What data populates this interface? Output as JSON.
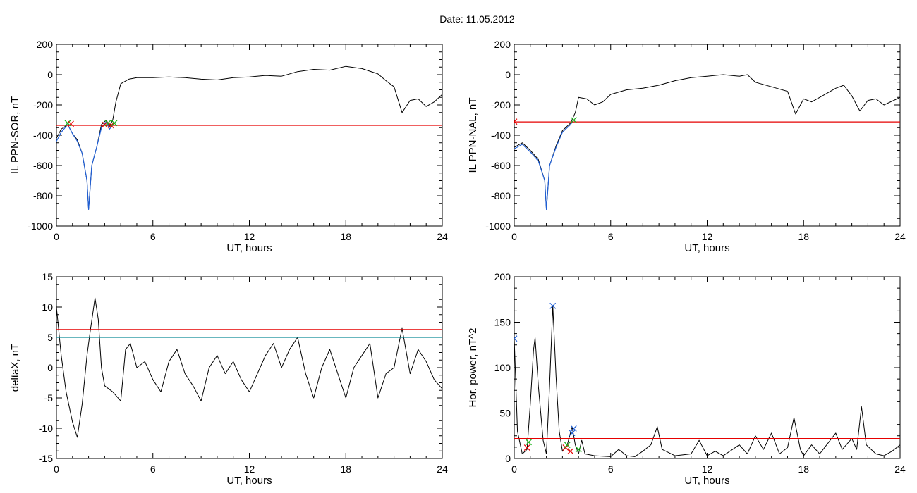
{
  "header": {
    "title": "Date:  11.05.2012"
  },
  "colors": {
    "black": "#000000",
    "red": "#e60000",
    "blue": "#1f5fd6",
    "teal": "#0f8c96",
    "green": "#19b419"
  },
  "chart_data": [
    {
      "type": "line",
      "xlabel": "UT, hours",
      "ylabel": "IL PPN-SOR, nT",
      "xlim": [
        0,
        24
      ],
      "ylim": [
        -1000,
        200
      ],
      "xticks": [
        0,
        6,
        12,
        18,
        24
      ],
      "yticks": [
        -1000,
        -800,
        -600,
        -400,
        -200,
        0,
        200
      ],
      "series": [
        {
          "color": "black",
          "points": [
            [
              0,
              -420
            ],
            [
              0.3,
              -360
            ],
            [
              0.7,
              -330
            ],
            [
              1.0,
              -390
            ],
            [
              1.3,
              -430
            ],
            [
              1.6,
              -520
            ],
            [
              1.9,
              -700
            ],
            [
              2.0,
              -890
            ],
            [
              2.2,
              -600
            ],
            [
              2.5,
              -480
            ],
            [
              2.8,
              -330
            ],
            [
              3.1,
              -300
            ],
            [
              3.3,
              -340
            ],
            [
              3.5,
              -300
            ],
            [
              3.7,
              -180
            ],
            [
              4.0,
              -60
            ],
            [
              4.5,
              -30
            ],
            [
              5.0,
              -20
            ],
            [
              6.0,
              -20
            ],
            [
              7.0,
              -15
            ],
            [
              8.0,
              -20
            ],
            [
              9.0,
              -30
            ],
            [
              10.0,
              -35
            ],
            [
              11.0,
              -20
            ],
            [
              12.0,
              -15
            ],
            [
              13.0,
              -5
            ],
            [
              14.0,
              -10
            ],
            [
              15.0,
              20
            ],
            [
              16.0,
              35
            ],
            [
              17.0,
              30
            ],
            [
              18.0,
              55
            ],
            [
              19.0,
              40
            ],
            [
              20.0,
              5
            ],
            [
              20.5,
              -40
            ],
            [
              21.0,
              -80
            ],
            [
              21.5,
              -250
            ],
            [
              22.0,
              -170
            ],
            [
              22.5,
              -160
            ],
            [
              23.0,
              -210
            ],
            [
              23.5,
              -180
            ],
            [
              24.0,
              -130
            ]
          ]
        },
        {
          "color": "blue",
          "points": [
            [
              0,
              -440
            ],
            [
              0.3,
              -380
            ],
            [
              0.7,
              -330
            ],
            [
              1.0,
              -390
            ],
            [
              1.3,
              -440
            ],
            [
              1.6,
              -520
            ],
            [
              1.9,
              -700
            ],
            [
              2.0,
              -890
            ],
            [
              2.2,
              -600
            ],
            [
              2.5,
              -480
            ],
            [
              2.8,
              -350
            ],
            [
              3.1,
              -310
            ],
            [
              3.3,
              -360
            ],
            [
              3.6,
              -320
            ]
          ]
        },
        {
          "color": "red",
          "points": [
            [
              0,
              -335
            ],
            [
              24,
              -335
            ]
          ]
        }
      ],
      "markers": [
        {
          "color": "green",
          "x": 0.7,
          "y": -320
        },
        {
          "color": "red",
          "x": 0.9,
          "y": -325
        },
        {
          "color": "red",
          "x": 3.0,
          "y": -330
        },
        {
          "color": "green",
          "x": 3.2,
          "y": -320
        },
        {
          "color": "red",
          "x": 3.4,
          "y": -335
        },
        {
          "color": "green",
          "x": 3.6,
          "y": -320
        }
      ]
    },
    {
      "type": "line",
      "xlabel": "UT, hours",
      "ylabel": "IL PPN-NAL, nT",
      "xlim": [
        0,
        24
      ],
      "ylim": [
        -1000,
        200
      ],
      "xticks": [
        0,
        6,
        12,
        18,
        24
      ],
      "yticks": [
        -1000,
        -800,
        -600,
        -400,
        -200,
        0,
        200
      ],
      "series": [
        {
          "color": "black",
          "points": [
            [
              0,
              -480
            ],
            [
              0.5,
              -450
            ],
            [
              1.0,
              -500
            ],
            [
              1.5,
              -560
            ],
            [
              1.9,
              -700
            ],
            [
              2.0,
              -890
            ],
            [
              2.2,
              -600
            ],
            [
              2.6,
              -470
            ],
            [
              3.0,
              -370
            ],
            [
              3.5,
              -320
            ],
            [
              3.8,
              -250
            ],
            [
              4.0,
              -150
            ],
            [
              4.5,
              -160
            ],
            [
              5.0,
              -200
            ],
            [
              5.5,
              -180
            ],
            [
              6.0,
              -130
            ],
            [
              7.0,
              -100
            ],
            [
              8.0,
              -90
            ],
            [
              9.0,
              -70
            ],
            [
              10.0,
              -40
            ],
            [
              11.0,
              -20
            ],
            [
              12.0,
              -10
            ],
            [
              13.0,
              0
            ],
            [
              14.0,
              -10
            ],
            [
              14.5,
              0
            ],
            [
              15.0,
              -50
            ],
            [
              16.0,
              -80
            ],
            [
              17.0,
              -110
            ],
            [
              17.5,
              -260
            ],
            [
              18.0,
              -160
            ],
            [
              18.5,
              -180
            ],
            [
              19.0,
              -150
            ],
            [
              20.0,
              -90
            ],
            [
              20.5,
              -70
            ],
            [
              21.0,
              -140
            ],
            [
              21.5,
              -240
            ],
            [
              22.0,
              -170
            ],
            [
              22.5,
              -160
            ],
            [
              23.0,
              -200
            ],
            [
              24.0,
              -150
            ]
          ]
        },
        {
          "color": "blue",
          "points": [
            [
              0,
              -490
            ],
            [
              0.5,
              -460
            ],
            [
              1.0,
              -510
            ],
            [
              1.5,
              -570
            ],
            [
              1.9,
              -700
            ],
            [
              2.0,
              -890
            ],
            [
              2.2,
              -600
            ],
            [
              2.6,
              -480
            ],
            [
              3.0,
              -380
            ],
            [
              3.5,
              -330
            ],
            [
              3.7,
              -300
            ]
          ]
        },
        {
          "color": "red",
          "points": [
            [
              0,
              -312
            ],
            [
              24,
              -312
            ]
          ]
        }
      ],
      "markers": [
        {
          "color": "red",
          "x": 0.0,
          "y": -310
        },
        {
          "color": "green",
          "x": 3.7,
          "y": -300
        }
      ]
    },
    {
      "type": "line",
      "xlabel": "UT, hours",
      "ylabel": "deltaX, nT",
      "xlim": [
        0,
        24
      ],
      "ylim": [
        -15,
        15
      ],
      "xticks": [
        0,
        6,
        12,
        18,
        24
      ],
      "yticks": [
        -15,
        -10,
        -5,
        0,
        5,
        10,
        15
      ],
      "series": [
        {
          "color": "black",
          "points": [
            [
              0,
              10
            ],
            [
              0.3,
              2
            ],
            [
              0.6,
              -4
            ],
            [
              1.0,
              -9
            ],
            [
              1.3,
              -11.5
            ],
            [
              1.6,
              -6
            ],
            [
              1.9,
              2
            ],
            [
              2.1,
              6
            ],
            [
              2.4,
              11.5
            ],
            [
              2.6,
              8
            ],
            [
              2.8,
              0
            ],
            [
              3.0,
              -3
            ],
            [
              3.5,
              -4
            ],
            [
              4.0,
              -5.5
            ],
            [
              4.3,
              3
            ],
            [
              4.6,
              4
            ],
            [
              5.0,
              0
            ],
            [
              5.5,
              1
            ],
            [
              6.0,
              -2
            ],
            [
              6.5,
              -4
            ],
            [
              7.0,
              1
            ],
            [
              7.5,
              3
            ],
            [
              8.0,
              -1
            ],
            [
              8.5,
              -3
            ],
            [
              9.0,
              -5.5
            ],
            [
              9.5,
              0
            ],
            [
              10.0,
              2
            ],
            [
              10.5,
              -1
            ],
            [
              11.0,
              1
            ],
            [
              11.5,
              -2
            ],
            [
              12.0,
              -4
            ],
            [
              12.5,
              -1
            ],
            [
              13.0,
              2
            ],
            [
              13.5,
              4
            ],
            [
              14.0,
              0
            ],
            [
              14.5,
              3
            ],
            [
              15.0,
              5
            ],
            [
              15.5,
              -1
            ],
            [
              16.0,
              -5
            ],
            [
              16.5,
              0
            ],
            [
              17.0,
              3
            ],
            [
              17.5,
              -1
            ],
            [
              18.0,
              -5
            ],
            [
              18.5,
              0
            ],
            [
              19.0,
              2
            ],
            [
              19.5,
              4
            ],
            [
              20.0,
              -5
            ],
            [
              20.5,
              -1
            ],
            [
              21.0,
              0
            ],
            [
              21.5,
              6.5
            ],
            [
              22.0,
              -1
            ],
            [
              22.5,
              3
            ],
            [
              23.0,
              1
            ],
            [
              23.5,
              -2
            ],
            [
              24.0,
              -3.5
            ]
          ]
        },
        {
          "color": "red",
          "points": [
            [
              0,
              6.3
            ],
            [
              24,
              6.3
            ]
          ]
        },
        {
          "color": "teal",
          "points": [
            [
              0,
              5
            ],
            [
              24,
              5
            ]
          ]
        }
      ],
      "markers": []
    },
    {
      "type": "line",
      "xlabel": "UT, hours",
      "ylabel": "Hor. power, nT^2",
      "xlim": [
        0,
        24
      ],
      "ylim": [
        0,
        200
      ],
      "xticks": [
        0,
        6,
        12,
        18,
        24
      ],
      "yticks": [
        0,
        50,
        100,
        150,
        200
      ],
      "series": [
        {
          "color": "black",
          "points": [
            [
              0,
              132
            ],
            [
              0.2,
              30
            ],
            [
              0.5,
              5
            ],
            [
              0.8,
              10
            ],
            [
              1.0,
              60
            ],
            [
              1.2,
              120
            ],
            [
              1.3,
              133
            ],
            [
              1.5,
              80
            ],
            [
              1.8,
              20
            ],
            [
              2.0,
              5
            ],
            [
              2.2,
              80
            ],
            [
              2.4,
              168
            ],
            [
              2.6,
              90
            ],
            [
              2.8,
              30
            ],
            [
              3.0,
              8
            ],
            [
              3.3,
              15
            ],
            [
              3.6,
              35
            ],
            [
              3.8,
              15
            ],
            [
              4.0,
              5
            ],
            [
              4.2,
              20
            ],
            [
              4.4,
              5
            ],
            [
              5.0,
              3
            ],
            [
              6.0,
              2
            ],
            [
              6.5,
              10
            ],
            [
              7.0,
              3
            ],
            [
              7.5,
              2
            ],
            [
              8.0,
              8
            ],
            [
              8.5,
              15
            ],
            [
              8.9,
              35
            ],
            [
              9.2,
              10
            ],
            [
              10.0,
              3
            ],
            [
              11.0,
              5
            ],
            [
              11.5,
              20
            ],
            [
              12.0,
              3
            ],
            [
              12.5,
              8
            ],
            [
              13.0,
              3
            ],
            [
              14.0,
              15
            ],
            [
              14.5,
              5
            ],
            [
              15.0,
              25
            ],
            [
              15.5,
              10
            ],
            [
              16.0,
              28
            ],
            [
              16.5,
              5
            ],
            [
              17.0,
              12
            ],
            [
              17.4,
              45
            ],
            [
              17.8,
              10
            ],
            [
              18.0,
              3
            ],
            [
              18.5,
              15
            ],
            [
              19.0,
              5
            ],
            [
              20.0,
              28
            ],
            [
              20.4,
              10
            ],
            [
              21.0,
              22
            ],
            [
              21.3,
              10
            ],
            [
              21.6,
              57
            ],
            [
              21.9,
              15
            ],
            [
              22.5,
              5
            ],
            [
              23.0,
              3
            ],
            [
              23.5,
              8
            ],
            [
              24.0,
              15
            ]
          ]
        },
        {
          "color": "red",
          "points": [
            [
              0,
              22
            ],
            [
              24,
              22
            ]
          ]
        }
      ],
      "markers": [
        {
          "color": "blue",
          "x": 0.0,
          "y": 132
        },
        {
          "color": "red",
          "x": 0.8,
          "y": 12
        },
        {
          "color": "green",
          "x": 0.9,
          "y": 18
        },
        {
          "color": "blue",
          "x": 2.4,
          "y": 168
        },
        {
          "color": "red",
          "x": 3.2,
          "y": 12
        },
        {
          "color": "green",
          "x": 3.3,
          "y": 15
        },
        {
          "color": "red",
          "x": 3.5,
          "y": 8
        },
        {
          "color": "blue",
          "x": 3.7,
          "y": 33
        },
        {
          "color": "blue",
          "x": 3.6,
          "y": 28
        },
        {
          "color": "green",
          "x": 4.0,
          "y": 10
        }
      ]
    }
  ]
}
